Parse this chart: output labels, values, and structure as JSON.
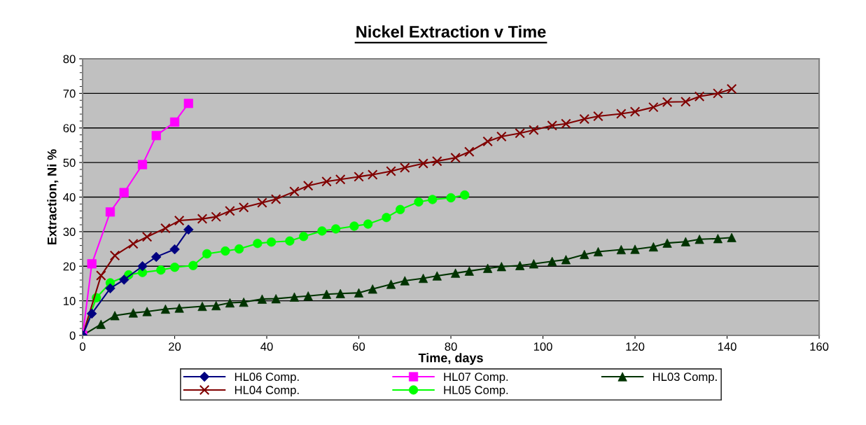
{
  "chart_data": {
    "type": "line",
    "title": "Nickel Extraction v Time",
    "xlabel": "Time, days",
    "ylabel": "Extraction, Ni %",
    "xlim": [
      0,
      160
    ],
    "xticks": [
      0,
      20,
      40,
      60,
      80,
      100,
      120,
      140,
      160
    ],
    "ylim": [
      0,
      80
    ],
    "yticks": [
      0,
      10,
      20,
      30,
      40,
      50,
      60,
      70,
      80
    ],
    "grid": "y",
    "legend": "bottom",
    "line_style": "solid",
    "series": [
      {
        "name": "HL06 Comp.",
        "color": "#000080",
        "marker": "diamond",
        "x": [
          0,
          2,
          6,
          9,
          13,
          16,
          20,
          23
        ],
        "values": [
          0,
          6.3,
          13.6,
          16.1,
          20.0,
          22.7,
          24.9,
          30.6
        ]
      },
      {
        "name": "HL07 Comp.",
        "color": "#ff00ff",
        "marker": "square",
        "x": [
          0,
          2,
          6,
          9,
          13,
          16,
          20,
          23
        ],
        "values": [
          0,
          20.7,
          35.7,
          41.3,
          49.4,
          57.8,
          61.7,
          67.1
        ]
      },
      {
        "name": "HL03 Comp.",
        "color": "#003300",
        "marker": "triangle",
        "x": [
          0,
          4,
          7,
          11,
          14,
          18,
          21,
          26,
          29,
          32,
          35,
          39,
          42,
          46,
          49,
          53,
          56,
          60,
          63,
          67,
          70,
          74,
          77,
          81,
          84,
          88,
          91,
          95,
          98,
          102,
          105,
          109,
          112,
          117,
          120,
          124,
          127,
          131,
          134,
          138,
          141
        ],
        "values": [
          0,
          3.2,
          5.7,
          6.5,
          6.9,
          7.6,
          7.9,
          8.4,
          8.6,
          9.4,
          9.6,
          10.5,
          10.6,
          11.1,
          11.4,
          11.9,
          12.1,
          12.3,
          13.4,
          14.8,
          15.8,
          16.5,
          17.2,
          18.0,
          18.6,
          19.4,
          19.9,
          20.2,
          20.7,
          21.4,
          21.9,
          23.4,
          24.2,
          24.8,
          24.9,
          25.6,
          26.7,
          27.1,
          27.8,
          28.0,
          28.3
        ]
      },
      {
        "name": "HL04 Comp.",
        "color": "#800000",
        "marker": "cross",
        "x": [
          0,
          4,
          7,
          11,
          14,
          18,
          21,
          26,
          29,
          32,
          35,
          39,
          42,
          46,
          49,
          53,
          56,
          60,
          63,
          67,
          70,
          74,
          77,
          81,
          84,
          88,
          91,
          95,
          98,
          102,
          105,
          109,
          112,
          117,
          120,
          124,
          127,
          131,
          134,
          138,
          141
        ],
        "values": [
          0,
          17.3,
          23.1,
          26.5,
          28.5,
          31.0,
          33.2,
          33.7,
          34.3,
          36.0,
          37.0,
          38.4,
          39.4,
          41.6,
          43.3,
          44.5,
          45.1,
          45.9,
          46.5,
          47.5,
          48.5,
          49.7,
          50.4,
          51.4,
          53.1,
          56.1,
          57.5,
          58.5,
          59.4,
          60.7,
          61.2,
          62.6,
          63.4,
          64.1,
          64.7,
          66.0,
          67.5,
          67.6,
          69.1,
          70.0,
          71.3
        ]
      },
      {
        "name": "HL05 Comp.",
        "color": "#00ff00",
        "marker": "circle",
        "x": [
          0,
          3,
          6,
          10,
          13,
          17,
          20,
          24,
          27,
          31,
          34,
          38,
          41,
          45,
          48,
          52,
          55,
          59,
          62,
          66,
          69,
          73,
          76,
          80,
          83
        ],
        "values": [
          0,
          10.9,
          15.2,
          17.5,
          18.2,
          18.9,
          19.7,
          20.2,
          23.6,
          24.4,
          25.0,
          26.6,
          27.0,
          27.3,
          28.6,
          30.2,
          30.8,
          31.6,
          32.2,
          34.1,
          36.4,
          38.6,
          39.3,
          39.8,
          40.6
        ]
      }
    ]
  }
}
